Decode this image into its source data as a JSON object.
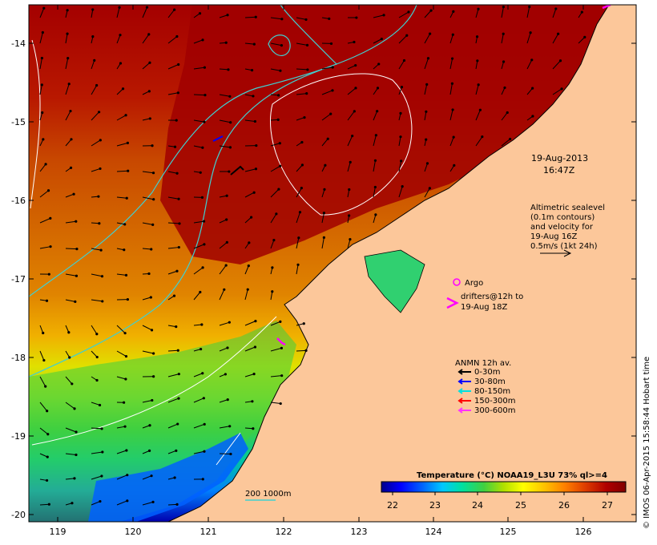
{
  "axes": {
    "lon_ticks": [
      "119",
      "120",
      "121",
      "122",
      "123",
      "124",
      "125",
      "126"
    ],
    "lat_ticks": [
      "-14",
      "-15",
      "-16",
      "-17",
      "-18",
      "-19",
      "-20"
    ]
  },
  "annotations": {
    "date": "19-Aug-2013",
    "time": "16:47Z",
    "altimetry": [
      "Altimetric sealevel",
      "(0.1m contours)",
      "and velocity for",
      "19-Aug 16Z",
      "0.5m/s (1kt 24h)"
    ],
    "argo_label": "Argo",
    "drifters": [
      "drifters@12h to",
      "19-Aug 18Z"
    ],
    "anmn_title": "ANMN 12h av.",
    "anmn_legend": [
      {
        "label": "0-30m",
        "color": "#000000"
      },
      {
        "label": "30-80m",
        "color": "#0000ff"
      },
      {
        "label": "80-150m",
        "color": "#00e0e0"
      },
      {
        "label": "150-300m",
        "color": "#ff0000"
      },
      {
        "label": "300-600m",
        "color": "#ff33ff"
      }
    ],
    "isobath_label": "200  1000m",
    "credit": "© IMOS 06-Apr-2015 15:58:44 Hobart time"
  },
  "colorbar": {
    "title": "Temperature (°C) NOAA19_L3U 73% ql>=4",
    "ticks": [
      "22",
      "23",
      "24",
      "25",
      "26",
      "27"
    ],
    "colors": [
      "#00008b",
      "#0000ff",
      "#0066ff",
      "#00c8ff",
      "#00e0a0",
      "#40d040",
      "#b0e000",
      "#ffff00",
      "#ffc000",
      "#ff8000",
      "#e04000",
      "#b00000",
      "#800000"
    ]
  },
  "colors": {
    "land": "#fcc79a",
    "sea_warm": "#a80000",
    "sea_mid": "#d06000",
    "sea_cool": "#e89000",
    "contour": "#ffffff",
    "isobath": "#40d0d0",
    "argo": "#ff00ff"
  }
}
